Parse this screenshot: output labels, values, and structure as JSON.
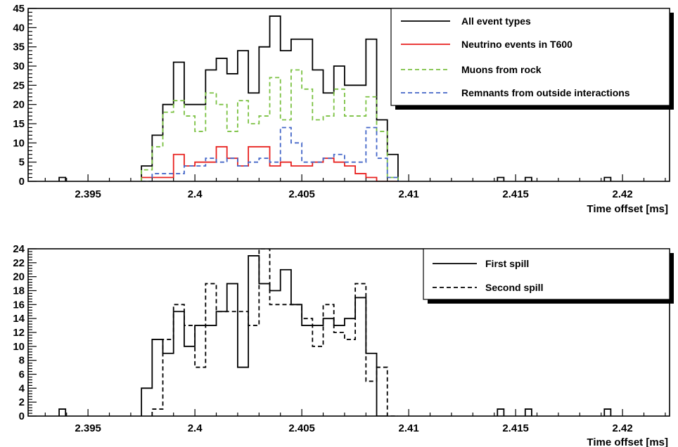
{
  "chart_data": [
    {
      "type": "histogram",
      "xlabel": "Time offset [ms]",
      "ylabel": "",
      "xlim": [
        2.3922,
        2.4222
      ],
      "ylim": [
        0,
        45
      ],
      "x_ticks": [
        "2.395",
        "2.4",
        "2.405",
        "2.41",
        "2.415",
        "2.42"
      ],
      "x_tick_values": [
        2.395,
        2.4,
        2.405,
        2.41,
        2.415,
        2.42
      ],
      "y_ticks": [
        0,
        5,
        10,
        15,
        20,
        25,
        30,
        35,
        40,
        45
      ],
      "bin_start": 2.3975,
      "bin_width": 0.0005,
      "legend_position": "top-right",
      "series": [
        {
          "name": "All event types",
          "color": "#000000",
          "style": "solid",
          "values": [
            4,
            12,
            20,
            31,
            20,
            20,
            29,
            32,
            28,
            34,
            23,
            35,
            43,
            34,
            37,
            37,
            29,
            23,
            30,
            25,
            25,
            37,
            16,
            7
          ]
        },
        {
          "name": "Neutrino events in T600",
          "color": "#e8211f",
          "style": "solid",
          "values": [
            1,
            1,
            1,
            7,
            4,
            5,
            5,
            9,
            6,
            4,
            9,
            9,
            4,
            5,
            4,
            4,
            5,
            6,
            5,
            4,
            2,
            1,
            0,
            0
          ]
        },
        {
          "name": "Muons from rock",
          "color": "#7bc142",
          "style": "dashed",
          "values": [
            3,
            9,
            18,
            21,
            17,
            13,
            23,
            20,
            13,
            21,
            15,
            17,
            27,
            16,
            29,
            24,
            16,
            17,
            24,
            17,
            17,
            22,
            13,
            1
          ]
        },
        {
          "name": "Remnants from outside interactions",
          "color": "#4466c8",
          "style": "dashed",
          "values": [
            0,
            2,
            2,
            2,
            4,
            4,
            6,
            5,
            6,
            4,
            5,
            6,
            5,
            14,
            10,
            5,
            5,
            6,
            7,
            5,
            5,
            14,
            6,
            1
          ]
        }
      ],
      "isolated_events": [
        {
          "x": 2.3938,
          "value": 1,
          "series": "All event types"
        },
        {
          "x": 2.4143,
          "value": 1,
          "series": "All event types"
        },
        {
          "x": 2.4156,
          "value": 1,
          "series": "All event types"
        },
        {
          "x": 2.4193,
          "value": 1,
          "series": "All event types"
        }
      ]
    },
    {
      "type": "histogram",
      "xlabel": "Time offset [ms]",
      "ylabel": "",
      "xlim": [
        2.3922,
        2.4222
      ],
      "ylim": [
        0,
        24
      ],
      "x_ticks": [
        "2.395",
        "2.4",
        "2.405",
        "2.41",
        "2.415",
        "2.42"
      ],
      "x_tick_values": [
        2.395,
        2.4,
        2.405,
        2.41,
        2.415,
        2.42
      ],
      "y_ticks": [
        0,
        2,
        4,
        6,
        8,
        10,
        12,
        14,
        16,
        18,
        20,
        22,
        24
      ],
      "bin_start": 2.3975,
      "bin_width": 0.0005,
      "legend_position": "top-right",
      "series": [
        {
          "name": "First spill",
          "color": "#000000",
          "style": "solid",
          "bin_start": 2.3975,
          "values": [
            4,
            11,
            9,
            15,
            10,
            13,
            13,
            15,
            19,
            7,
            23,
            19,
            18,
            21,
            16,
            13,
            13,
            14,
            13,
            14,
            17,
            9,
            0
          ]
        },
        {
          "name": "Second spill",
          "color": "#000000",
          "style": "dashed",
          "bin_start": 2.398,
          "values": [
            1,
            11,
            16,
            13,
            7,
            19,
            15,
            15,
            15,
            13,
            24,
            16,
            16,
            16,
            14,
            10,
            16,
            12,
            11,
            19,
            5,
            7,
            0
          ]
        }
      ],
      "isolated_events": [
        {
          "x": 2.3938,
          "value": 1,
          "series": "First spill"
        },
        {
          "x": 2.4143,
          "value": 1,
          "series": "First spill"
        },
        {
          "x": 2.4156,
          "value": 1,
          "series": "First spill"
        },
        {
          "x": 2.4193,
          "value": 1,
          "series": "First spill"
        }
      ]
    }
  ]
}
